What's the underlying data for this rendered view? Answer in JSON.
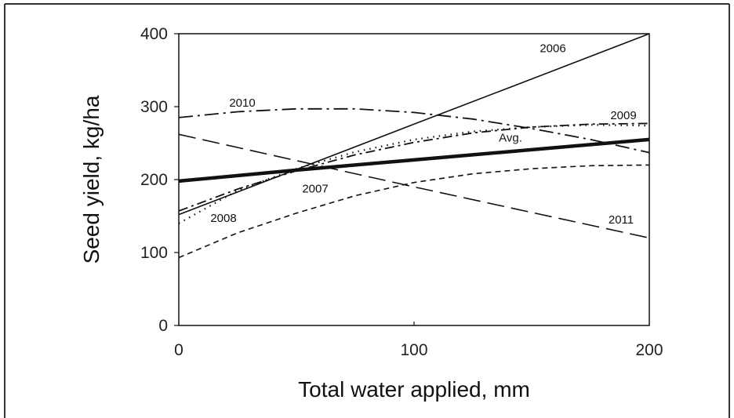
{
  "chart_data": {
    "type": "line",
    "title": "",
    "xlabel": "Total water applied, mm",
    "ylabel": "Seed yield, kg/ha",
    "xlim": [
      0,
      200
    ],
    "ylim": [
      0,
      400
    ],
    "xticks": [
      "0",
      "100",
      "200"
    ],
    "yticks": [
      "0",
      "100",
      "200",
      "300",
      "400"
    ],
    "grid": false,
    "legend": "none (series labeled directly on lines)",
    "series": [
      {
        "name": "2006",
        "style": "solid",
        "x": [
          0,
          50,
          100,
          150,
          200
        ],
        "y": [
          152,
          214,
          276,
          338,
          400
        ]
      },
      {
        "name": "2007",
        "style": "short-dash",
        "x": [
          0,
          25,
          50,
          75,
          100,
          125,
          150,
          175,
          200
        ],
        "y": [
          93,
          127,
          154,
          178,
          196,
          208,
          215,
          219,
          220
        ]
      },
      {
        "name": "2008",
        "style": "dotted",
        "x": [
          0,
          25,
          50,
          75,
          100,
          125,
          150,
          175,
          200
        ],
        "y": [
          140,
          185,
          215,
          238,
          255,
          266,
          272,
          275,
          274
        ]
      },
      {
        "name": "2009",
        "style": "dash-dot",
        "x": [
          0,
          25,
          50,
          75,
          100,
          125,
          150,
          175,
          200
        ],
        "y": [
          157,
          187,
          212,
          234,
          251,
          264,
          272,
          276,
          277
        ]
      },
      {
        "name": "2010",
        "style": "long-dash-dot",
        "x": [
          0,
          25,
          50,
          75,
          100,
          125,
          150,
          175,
          200
        ],
        "y": [
          285,
          293,
          297,
          297,
          292,
          283,
          270,
          255,
          237
        ]
      },
      {
        "name": "2011",
        "style": "long-dash",
        "x": [
          0,
          50,
          100,
          150,
          200
        ],
        "y": [
          262,
          226,
          190,
          155,
          120
        ]
      },
      {
        "name": "Avg.",
        "style": "thick-solid",
        "x": [
          0,
          50,
          100,
          150,
          200
        ],
        "y": [
          198,
          213,
          227,
          241,
          255
        ]
      }
    ],
    "series_label_positions": {
      "2006": [
        159,
        375
      ],
      "2007": [
        58,
        182
      ],
      "2008": [
        19,
        142
      ],
      "2009": [
        189,
        283
      ],
      "2010": [
        27,
        300
      ],
      "2011": [
        188,
        140
      ],
      "Avg.": [
        141,
        252
      ]
    }
  }
}
